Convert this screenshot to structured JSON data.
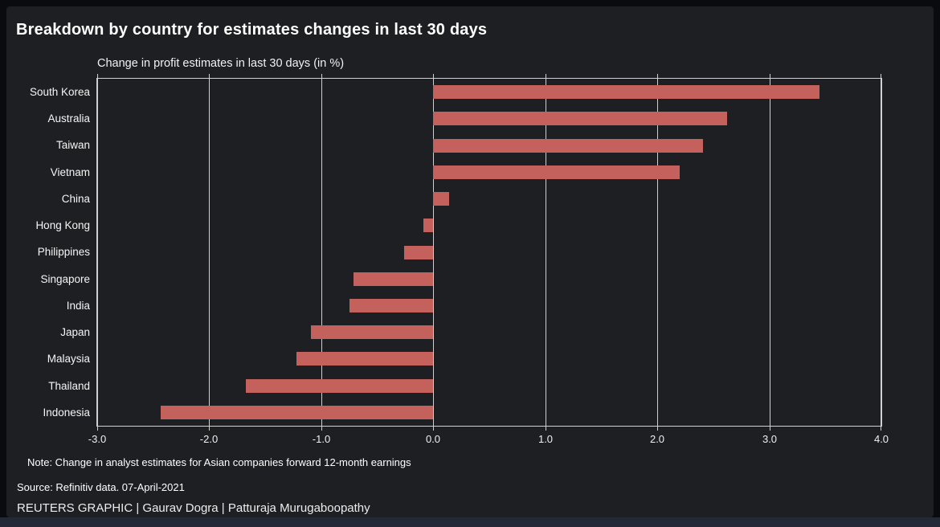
{
  "header": {
    "title": "Breakdown by country for estimates changes in last 30 days"
  },
  "chart_data": {
    "type": "bar",
    "orientation": "horizontal",
    "title": "Breakdown by country for estimates changes in last 30 days",
    "subtitle": "Change in profit estimates in last 30 days (in %)",
    "categories": [
      "South Korea",
      "Australia",
      "Taiwan",
      "Vietnam",
      "China",
      "Hong Kong",
      "Philippines",
      "Singapore",
      "India",
      "Japan",
      "Malaysia",
      "Thailand",
      "Indonesia"
    ],
    "values": [
      3.45,
      2.62,
      2.41,
      2.2,
      0.14,
      -0.09,
      -0.26,
      -0.71,
      -0.75,
      -1.09,
      -1.22,
      -1.67,
      -2.43
    ],
    "xlim": [
      -3.0,
      4.0
    ],
    "xticks": [
      -3.0,
      -2.0,
      -1.0,
      0.0,
      1.0,
      2.0,
      3.0,
      4.0
    ],
    "xtick_labels": [
      "-3.0",
      "-2.0",
      "-1.0",
      "0.0",
      "1.0",
      "2.0",
      "3.0",
      "4.0"
    ],
    "grid": true,
    "legend": "none",
    "bar_color": "#c5615d",
    "grid_color": "#cfcfcf",
    "background_color": "#1e1f23",
    "text_color": "#f5f5f5"
  },
  "footer": {
    "note": "Note: Change in analyst estimates for Asian companies forward 12-month earnings",
    "source": "Source: Refinitiv data. 07-April-2021",
    "credit": "REUTERS GRAPHIC | Gaurav Dogra | Patturaja Murugaboopathy"
  }
}
